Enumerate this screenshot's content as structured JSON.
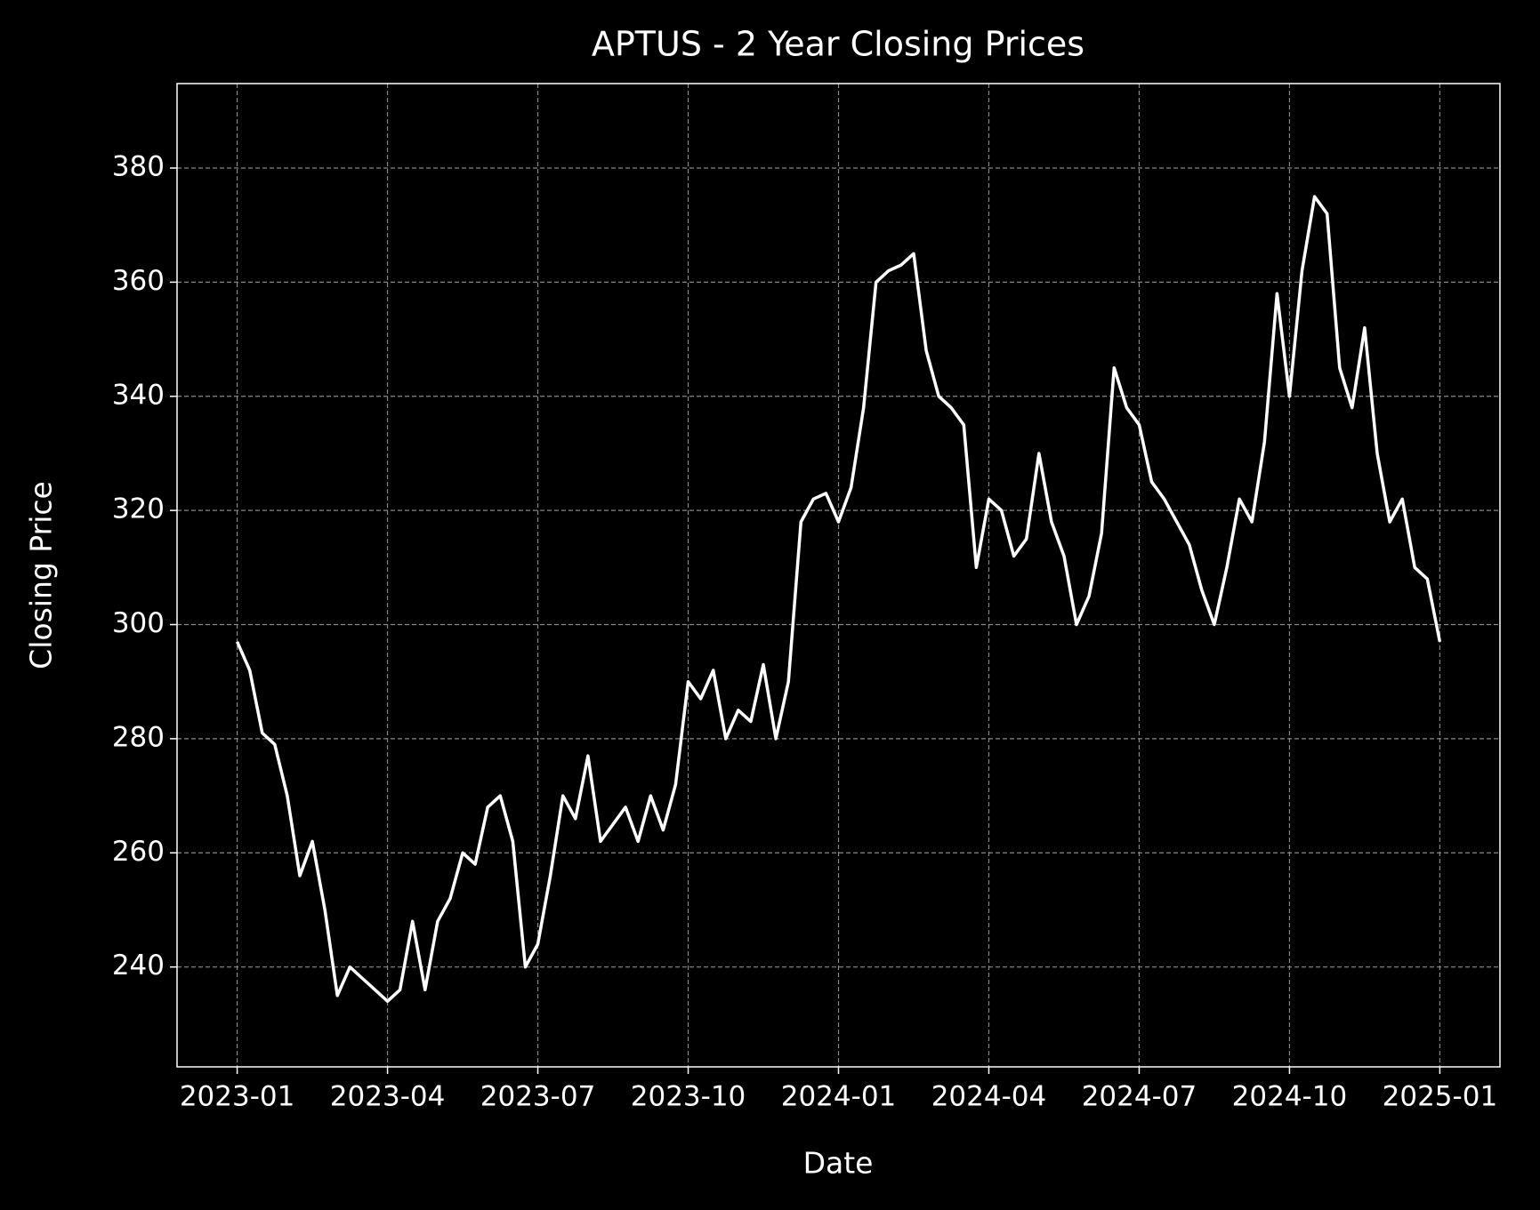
{
  "chart_data": {
    "type": "line",
    "title": "APTUS - 2 Year Closing Prices",
    "xlabel": "Date",
    "ylabel": "Closing Price",
    "x": [
      "2023-01",
      "2023-01",
      "2023-01",
      "2023-01",
      "2023-02",
      "2023-02",
      "2023-02",
      "2023-02",
      "2023-03",
      "2023-03",
      "2023-03",
      "2023-03",
      "2023-04",
      "2023-04",
      "2023-04",
      "2023-04",
      "2023-05",
      "2023-05",
      "2023-05",
      "2023-05",
      "2023-06",
      "2023-06",
      "2023-06",
      "2023-06",
      "2023-07",
      "2023-07",
      "2023-07",
      "2023-07",
      "2023-08",
      "2023-08",
      "2023-08",
      "2023-08",
      "2023-09",
      "2023-09",
      "2023-09",
      "2023-09",
      "2023-10",
      "2023-10",
      "2023-10",
      "2023-10",
      "2023-11",
      "2023-11",
      "2023-11",
      "2023-11",
      "2023-12",
      "2023-12",
      "2023-12",
      "2023-12",
      "2024-01",
      "2024-01",
      "2024-01",
      "2024-01",
      "2024-02",
      "2024-02",
      "2024-02",
      "2024-02",
      "2024-03",
      "2024-03",
      "2024-03",
      "2024-03",
      "2024-04",
      "2024-04",
      "2024-04",
      "2024-04",
      "2024-05",
      "2024-05",
      "2024-05",
      "2024-05",
      "2024-06",
      "2024-06",
      "2024-06",
      "2024-06",
      "2024-07",
      "2024-07",
      "2024-07",
      "2024-07",
      "2024-08",
      "2024-08",
      "2024-08",
      "2024-08",
      "2024-09",
      "2024-09",
      "2024-09",
      "2024-09",
      "2024-10",
      "2024-10",
      "2024-10",
      "2024-10",
      "2024-11",
      "2024-11",
      "2024-11",
      "2024-11",
      "2024-12",
      "2024-12",
      "2024-12",
      "2024-12",
      "2025-01"
    ],
    "values": [
      297,
      292,
      281,
      279,
      270,
      256,
      262,
      250,
      235,
      240,
      238,
      236,
      234,
      236,
      248,
      236,
      248,
      252,
      260,
      258,
      268,
      270,
      262,
      240,
      244,
      256,
      270,
      266,
      277,
      262,
      265,
      268,
      262,
      270,
      264,
      272,
      290,
      287,
      292,
      280,
      285,
      283,
      293,
      280,
      290,
      318,
      322,
      323,
      318,
      324,
      338,
      360,
      362,
      363,
      365,
      348,
      340,
      338,
      335,
      310,
      322,
      320,
      312,
      315,
      330,
      318,
      312,
      300,
      305,
      316,
      345,
      338,
      335,
      325,
      322,
      318,
      314,
      306,
      300,
      310,
      322,
      318,
      332,
      358,
      340,
      362,
      375,
      372,
      345,
      338,
      352,
      330,
      318,
      322,
      310,
      308,
      297
    ],
    "color": "#ffffff",
    "xticks": [
      "2023-01",
      "2023-04",
      "2023-07",
      "2023-10",
      "2024-01",
      "2024-04",
      "2024-07",
      "2024-10",
      "2025-01"
    ],
    "ylim": [
      222.5,
      394.8
    ],
    "yticks": [
      240,
      260,
      280,
      300,
      320,
      340,
      360,
      380
    ],
    "grid": true
  }
}
